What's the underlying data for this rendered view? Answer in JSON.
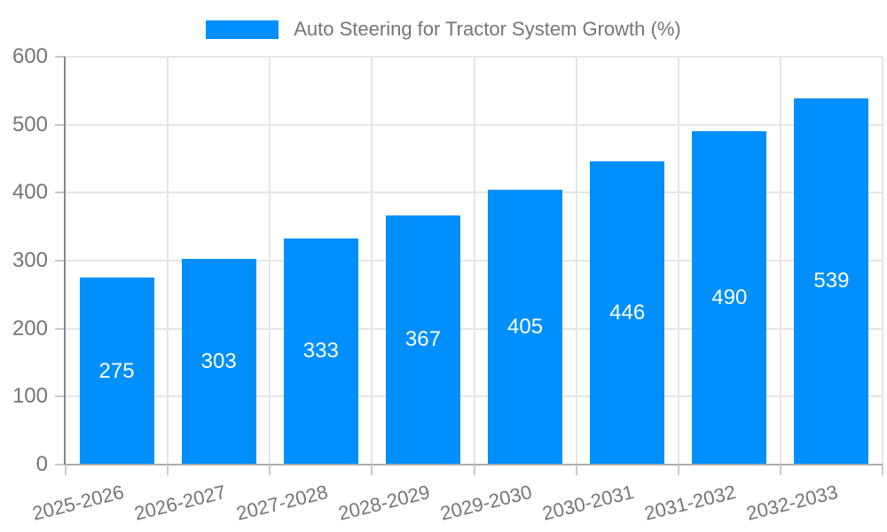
{
  "legend": {
    "label": "Auto Steering for Tractor System Growth (%)",
    "swatch_color": "#008FFB"
  },
  "chart_data": {
    "type": "bar",
    "title": "Auto Steering for Tractor System Growth (%)",
    "categories": [
      "2025-2026",
      "2026-2027",
      "2027-2028",
      "2028-2029",
      "2029-2030",
      "2030-2031",
      "2031-2032",
      "2032-2033"
    ],
    "values": [
      275,
      303,
      333,
      367,
      405,
      446,
      490,
      539
    ],
    "xlabel": "",
    "ylabel": "",
    "ylim": [
      0,
      600
    ],
    "yticks": [
      0,
      100,
      200,
      300,
      400,
      500,
      600
    ],
    "legend_position": "top",
    "grid": "horizontal-and-vertical",
    "x_label_rotation_deg": -14,
    "colors": {
      "bar": "#008FFB",
      "value_label": "#ffffff",
      "axis_text": "#757575",
      "grid_line": "#e6e6e6",
      "y_axis_line": "#878787",
      "x_axis_line": "#ababab"
    }
  }
}
